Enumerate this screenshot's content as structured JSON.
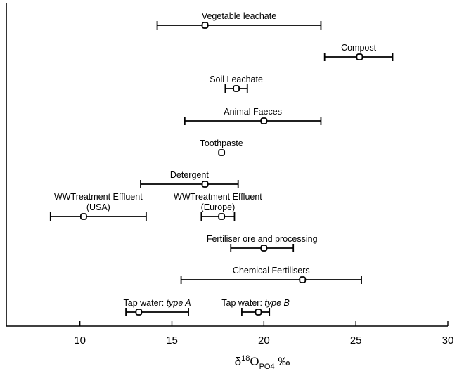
{
  "chart_data": {
    "type": "scatter",
    "title": "",
    "xlabel": {
      "prefix": "δ",
      "sup": "18",
      "base": "O",
      "sub": "PO4",
      "unit": " ‰"
    },
    "ylabel": "",
    "xlim": [
      6,
      30
    ],
    "xticks": [
      10,
      15,
      20,
      25,
      30
    ],
    "grid": false,
    "legend": "none",
    "series": [
      {
        "name": "Vegetable leachate",
        "lines": [
          "Vegetable leachate"
        ],
        "mean": 16.8,
        "min": 14.2,
        "max": 23.1
      },
      {
        "name": "Compost",
        "lines": [
          "Compost"
        ],
        "mean": 25.2,
        "min": 23.3,
        "max": 27.0
      },
      {
        "name": "Soil Leachate",
        "lines": [
          "Soil Leachate"
        ],
        "mean": 18.5,
        "min": 17.9,
        "max": 19.1
      },
      {
        "name": "Animal Faeces",
        "lines": [
          "Animal Faeces"
        ],
        "mean": 20.0,
        "min": 15.7,
        "max": 23.1
      },
      {
        "name": "Toothpaste",
        "lines": [
          "Toothpaste"
        ],
        "mean": 17.7,
        "min": 17.7,
        "max": 17.7
      },
      {
        "name": "Detergent",
        "lines": [
          "Detergent"
        ],
        "mean": 16.8,
        "min": 13.3,
        "max": 18.6
      },
      {
        "name": "WWTreatment Effluent (USA)",
        "lines": [
          "WWTreatment Effluent",
          "(USA)"
        ],
        "mean": 10.2,
        "min": 8.4,
        "max": 13.6
      },
      {
        "name": "WWTreatment Effluent (Europe)",
        "lines": [
          "WWTreatment Effluent",
          "(Europe)"
        ],
        "mean": 17.7,
        "min": 16.6,
        "max": 18.4
      },
      {
        "name": "Fertiliser ore and processing",
        "lines": [
          "Fertiliser ore and processing"
        ],
        "mean": 20.0,
        "min": 18.2,
        "max": 21.6
      },
      {
        "name": "Chemical Fertilisers",
        "lines": [
          "Chemical Fertilisers"
        ],
        "mean": 22.1,
        "min": 15.5,
        "max": 25.3
      },
      {
        "name": "Tap water: type A",
        "lines": [
          "Tap water: "
        ],
        "italic": "type A",
        "mean": 13.2,
        "min": 12.5,
        "max": 15.9
      },
      {
        "name": "Tap water: type B",
        "lines": [
          "Tap water: "
        ],
        "italic": "type B",
        "mean": 19.7,
        "min": 18.8,
        "max": 20.3
      }
    ]
  }
}
